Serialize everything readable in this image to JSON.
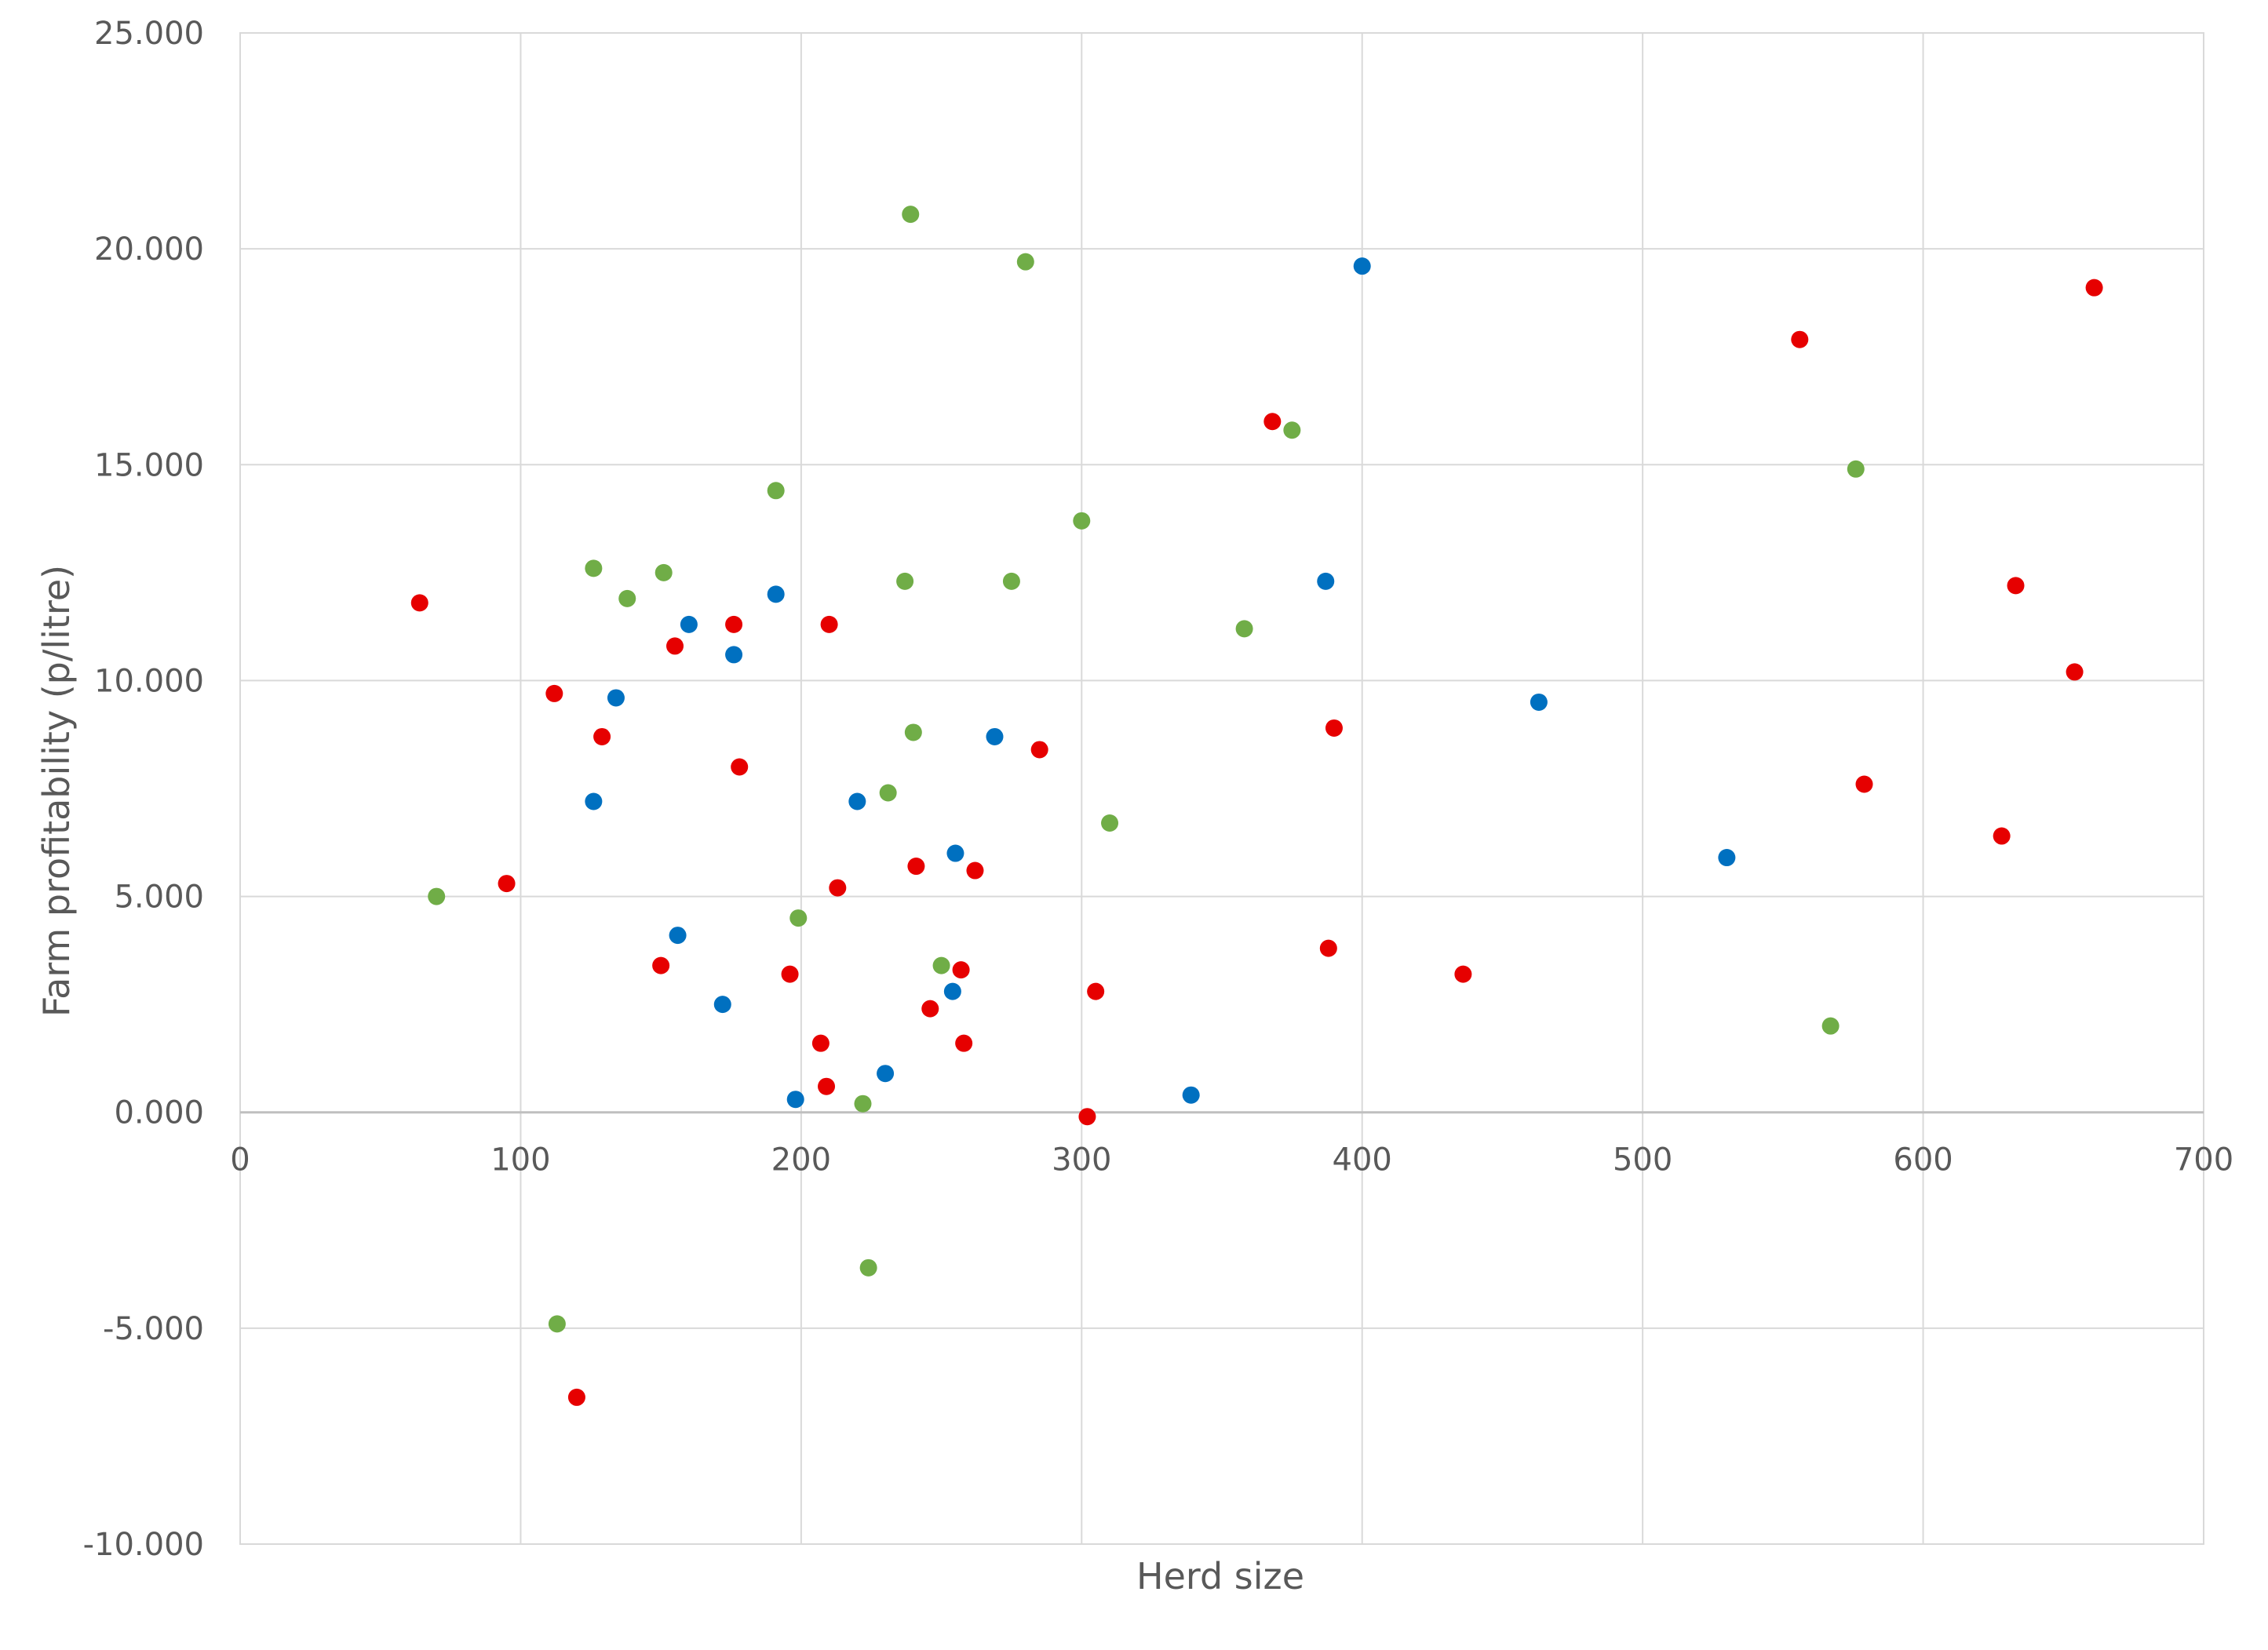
{
  "chart_data": {
    "type": "scatter",
    "title": "",
    "xlabel": "Herd size",
    "ylabel": "Farm profitability (p/litre)",
    "xlim": [
      0,
      700
    ],
    "ylim": [
      -10,
      25
    ],
    "x_ticks": [
      0,
      100,
      200,
      300,
      400,
      500,
      600,
      700
    ],
    "x_tick_labels": [
      "0",
      "100",
      "200",
      "300",
      "400",
      "500",
      "600",
      "700"
    ],
    "y_ticks": [
      -10,
      -5,
      0,
      5,
      10,
      15,
      20,
      25
    ],
    "y_tick_labels": [
      "-10.000",
      "-5.000",
      "0.000",
      "5.000",
      "10.000",
      "15.000",
      "20.000",
      "25.000"
    ],
    "grid": true,
    "legend": "none",
    "colors": {
      "grid": "#d9d9d9",
      "plot_border": "#d9d9d9",
      "zero_line": "#bfbfbf",
      "text": "#595959"
    },
    "series": [
      {
        "color": "#e60000",
        "points": [
          [
            64,
            11.8
          ],
          [
            95,
            5.3
          ],
          [
            112,
            9.7
          ],
          [
            120,
            -6.6
          ],
          [
            129,
            8.7
          ],
          [
            150,
            3.4
          ],
          [
            155,
            10.8
          ],
          [
            176,
            11.3
          ],
          [
            178,
            8.0
          ],
          [
            196,
            3.2
          ],
          [
            207,
            1.6
          ],
          [
            209,
            0.6
          ],
          [
            210,
            11.3
          ],
          [
            213,
            5.2
          ],
          [
            241,
            5.7
          ],
          [
            246,
            2.4
          ],
          [
            257,
            3.3
          ],
          [
            258,
            1.6
          ],
          [
            262,
            5.6
          ],
          [
            285,
            8.4
          ],
          [
            302,
            -0.1
          ],
          [
            305,
            2.8
          ],
          [
            368,
            16.0
          ],
          [
            388,
            3.8
          ],
          [
            390,
            8.9
          ],
          [
            436,
            3.2
          ],
          [
            556,
            17.9
          ],
          [
            579,
            7.6
          ],
          [
            628,
            6.4
          ],
          [
            633,
            12.2
          ],
          [
            654,
            10.2
          ],
          [
            661,
            19.1
          ]
        ]
      },
      {
        "color": "#0070c0",
        "points": [
          [
            126,
            7.2
          ],
          [
            134,
            9.6
          ],
          [
            156,
            4.1
          ],
          [
            160,
            11.3
          ],
          [
            172,
            2.5
          ],
          [
            176,
            10.6
          ],
          [
            191,
            12.0
          ],
          [
            198,
            0.3
          ],
          [
            220,
            7.2
          ],
          [
            230,
            0.9
          ],
          [
            254,
            2.8
          ],
          [
            255,
            6.0
          ],
          [
            269,
            8.7
          ],
          [
            339,
            0.4
          ],
          [
            387,
            12.3
          ],
          [
            400,
            19.6
          ],
          [
            463,
            9.5
          ],
          [
            530,
            5.9
          ]
        ]
      },
      {
        "color": "#70ad47",
        "points": [
          [
            70,
            5.0
          ],
          [
            113,
            -4.9
          ],
          [
            126,
            12.6
          ],
          [
            138,
            11.9
          ],
          [
            151,
            12.5
          ],
          [
            191,
            14.4
          ],
          [
            199,
            4.5
          ],
          [
            222,
            0.2
          ],
          [
            224,
            -3.6
          ],
          [
            231,
            7.4
          ],
          [
            237,
            12.3
          ],
          [
            239,
            20.8
          ],
          [
            240,
            8.8
          ],
          [
            250,
            3.4
          ],
          [
            275,
            12.3
          ],
          [
            280,
            19.7
          ],
          [
            300,
            13.7
          ],
          [
            310,
            6.7
          ],
          [
            358,
            11.2
          ],
          [
            375,
            15.8
          ],
          [
            567,
            2.0
          ],
          [
            576,
            14.9
          ]
        ]
      }
    ]
  }
}
